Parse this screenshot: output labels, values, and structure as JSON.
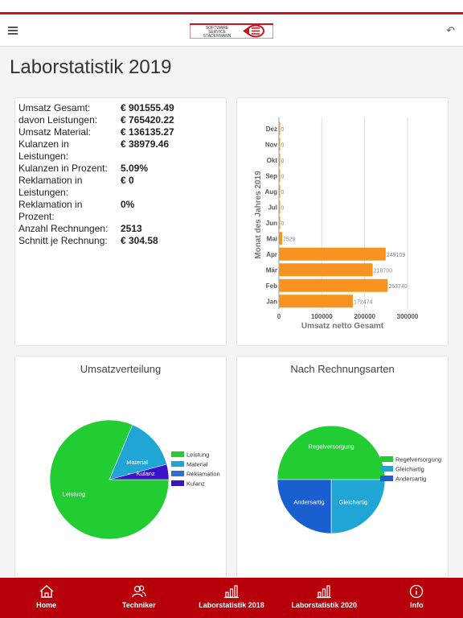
{
  "header": {
    "menu_icon": "hamburger-icon",
    "back_icon": "back-arrow-icon",
    "logo_text": [
      "SOFTWARE",
      "SERVICE",
      "STADERMANN"
    ]
  },
  "page_title": "Laborstatistik 2019",
  "stats": [
    {
      "label": "Umsatz Gesamt:",
      "value": "€ 901555.49"
    },
    {
      "label": "davon Leistungen:",
      "value": "€ 765420.22"
    },
    {
      "label": "Umsatz Material:",
      "value": "€ 136135.27"
    },
    {
      "label": "Kulanzen in Leistungen:",
      "value": "€ 38979.46"
    },
    {
      "label": "Kulanzen in Prozent:",
      "value": "5.09%"
    },
    {
      "label": "Reklamation in Leistungen:",
      "value": "€ 0"
    },
    {
      "label": "Reklamation in Prozent:",
      "value": "0%"
    },
    {
      "label": "Anzahl Rechnungen:",
      "value": "2513"
    },
    {
      "label": "Schnitt je Rechnung:",
      "value": "€ 304.58"
    }
  ],
  "colors": {
    "brand_red": "#b8000a",
    "bar_orange": "#f7931e",
    "green": "#22cc33",
    "teal": "#1fa6d6",
    "blue": "#1a5fcf",
    "purple": "#3a14c8"
  },
  "chart_data": [
    {
      "type": "bar",
      "orientation": "horizontal",
      "categories": [
        "Jan",
        "Feb",
        "Mär",
        "Apr",
        "Mai",
        "Jun",
        "Jul",
        "Aug",
        "Sep",
        "Okt",
        "Nov",
        "Dez"
      ],
      "values": [
        172474,
        253740,
        218700,
        249109,
        7529,
        0,
        0,
        0,
        0,
        0,
        0,
        0
      ],
      "value_labels": [
        "172474",
        "253740",
        "218700",
        "249109",
        "7529",
        "0",
        "0",
        "0",
        "0",
        "0",
        "0",
        "0"
      ],
      "xlabel": "Umsatz netto Gesamt",
      "ylabel": "Monat des Jahres 2019",
      "xlim": [
        0,
        300000
      ],
      "xticks": [
        "0",
        "100000",
        "200000",
        "300000"
      ],
      "grid": true
    },
    {
      "type": "pie",
      "title": "Umsatzverteilung",
      "series": [
        {
          "name": "Leistung",
          "value": 765420.22,
          "color": "#22cc33"
        },
        {
          "name": "Material",
          "value": 136135.27,
          "color": "#1fa6d6"
        },
        {
          "name": "Reklamation",
          "value": 0,
          "color": "#2f6fd1"
        },
        {
          "name": "Kulanz",
          "value": 38979.46,
          "color": "#3a14c8"
        }
      ],
      "legend": "right"
    },
    {
      "type": "pie",
      "title": "Nach Rechnungsarten",
      "series": [
        {
          "name": "Regelversorgung",
          "value": 50,
          "color": "#22cc33"
        },
        {
          "name": "Gleichartig",
          "value": 25,
          "color": "#1fa6d6"
        },
        {
          "name": "Andersartig",
          "value": 25,
          "color": "#1a5fcf"
        }
      ],
      "legend": "right"
    }
  ],
  "nav": [
    {
      "label": "Home",
      "icon": "home-icon"
    },
    {
      "label": "Techniker",
      "icon": "users-icon"
    },
    {
      "label": "Laborstatistik 2018",
      "icon": "bar-chart-icon"
    },
    {
      "label": "Laborstatistik 2020",
      "icon": "bar-chart-icon"
    },
    {
      "label": "Info",
      "icon": "info-icon"
    }
  ]
}
